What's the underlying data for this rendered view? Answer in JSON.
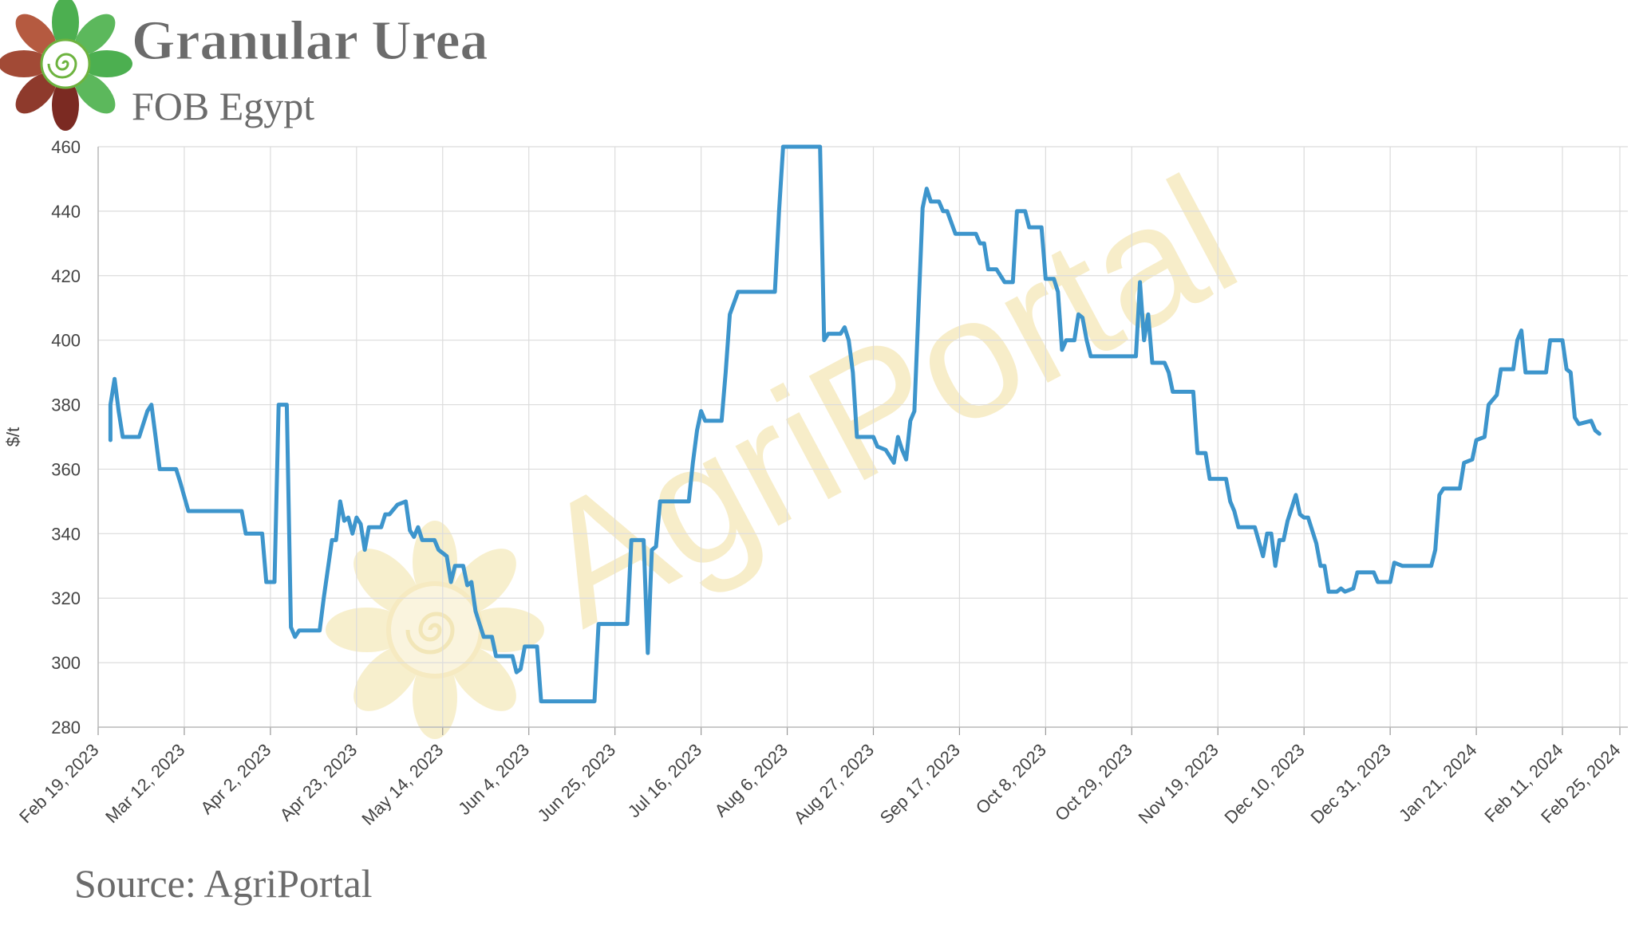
{
  "header": {
    "title": "Granular Urea",
    "subtitle": "FOB Egypt"
  },
  "footer": {
    "source": "Source: AgriPortal"
  },
  "watermark": {
    "text": "AgriPortal"
  },
  "colors": {
    "line": "#3d95cc",
    "grid": "#dcdcdc",
    "title": "#6b6b6b",
    "watermark": "#f2e2a6"
  },
  "chart_data": {
    "type": "line",
    "title": "Granular Urea",
    "subtitle": "FOB Egypt",
    "xlabel": "",
    "ylabel": "$/t",
    "ylim": [
      280,
      460
    ],
    "yticks": [
      280,
      300,
      320,
      340,
      360,
      380,
      400,
      420,
      440,
      460
    ],
    "xlim": [
      "2023-02-19",
      "2024-02-25"
    ],
    "xticks": [
      {
        "date": "2023-02-19",
        "label": "Feb 19, 2023"
      },
      {
        "date": "2023-03-12",
        "label": "Mar 12, 2023"
      },
      {
        "date": "2023-04-02",
        "label": "Apr 2, 2023"
      },
      {
        "date": "2023-04-23",
        "label": "Apr 23, 2023"
      },
      {
        "date": "2023-05-14",
        "label": "May 14, 2023"
      },
      {
        "date": "2023-06-04",
        "label": "Jun 4, 2023"
      },
      {
        "date": "2023-06-25",
        "label": "Jun 25, 2023"
      },
      {
        "date": "2023-07-16",
        "label": "Jul 16, 2023"
      },
      {
        "date": "2023-08-06",
        "label": "Aug 6, 2023"
      },
      {
        "date": "2023-08-27",
        "label": "Aug 27, 2023"
      },
      {
        "date": "2023-09-17",
        "label": "Sep 17, 2023"
      },
      {
        "date": "2023-10-08",
        "label": "Oct 8, 2023"
      },
      {
        "date": "2023-10-29",
        "label": "Oct 29, 2023"
      },
      {
        "date": "2023-11-19",
        "label": "Nov 19, 2023"
      },
      {
        "date": "2023-12-10",
        "label": "Dec 10, 2023"
      },
      {
        "date": "2023-12-31",
        "label": "Dec 31, 2023"
      },
      {
        "date": "2024-01-21",
        "label": "Jan 21, 2024"
      },
      {
        "date": "2024-02-11",
        "label": "Feb 11, 2024"
      },
      {
        "date": "2024-02-25",
        "label": "Feb 25, 2024"
      }
    ],
    "grid": true,
    "legend": "none",
    "series": [
      {
        "values": [
          [
            "2023-02-22",
            369
          ],
          [
            "2023-02-22",
            380
          ],
          [
            "2023-02-23",
            388
          ],
          [
            "2023-02-24",
            378
          ],
          [
            "2023-02-25",
            370
          ],
          [
            "2023-02-28",
            370
          ],
          [
            "2023-03-01",
            370
          ],
          [
            "2023-03-03",
            378
          ],
          [
            "2023-03-04",
            380
          ],
          [
            "2023-03-05",
            370
          ],
          [
            "2023-03-06",
            360
          ],
          [
            "2023-03-10",
            360
          ],
          [
            "2023-03-11",
            356
          ],
          [
            "2023-03-13",
            347
          ],
          [
            "2023-03-26",
            347
          ],
          [
            "2023-03-27",
            340
          ],
          [
            "2023-03-31",
            340
          ],
          [
            "2023-04-01",
            325
          ],
          [
            "2023-04-03",
            325
          ],
          [
            "2023-04-04",
            380
          ],
          [
            "2023-04-06",
            380
          ],
          [
            "2023-04-07",
            311
          ],
          [
            "2023-04-08",
            308
          ],
          [
            "2023-04-09",
            310
          ],
          [
            "2023-04-14",
            310
          ],
          [
            "2023-04-15",
            320
          ],
          [
            "2023-04-17",
            338
          ],
          [
            "2023-04-18",
            338
          ],
          [
            "2023-04-19",
            350
          ],
          [
            "2023-04-20",
            344
          ],
          [
            "2023-04-21",
            345
          ],
          [
            "2023-04-22",
            340
          ],
          [
            "2023-04-23",
            345
          ],
          [
            "2023-04-24",
            343
          ],
          [
            "2023-04-25",
            335
          ],
          [
            "2023-04-26",
            342
          ],
          [
            "2023-04-29",
            342
          ],
          [
            "2023-04-30",
            346
          ],
          [
            "2023-05-01",
            346
          ],
          [
            "2023-05-03",
            349
          ],
          [
            "2023-05-05",
            350
          ],
          [
            "2023-05-06",
            341
          ],
          [
            "2023-05-07",
            339
          ],
          [
            "2023-05-08",
            342
          ],
          [
            "2023-05-09",
            338
          ],
          [
            "2023-05-12",
            338
          ],
          [
            "2023-05-13",
            335
          ],
          [
            "2023-05-15",
            333
          ],
          [
            "2023-05-16",
            325
          ],
          [
            "2023-05-17",
            330
          ],
          [
            "2023-05-19",
            330
          ],
          [
            "2023-05-20",
            324
          ],
          [
            "2023-05-21",
            325
          ],
          [
            "2023-05-22",
            316
          ],
          [
            "2023-05-23",
            312
          ],
          [
            "2023-05-24",
            308
          ],
          [
            "2023-05-26",
            308
          ],
          [
            "2023-05-27",
            302
          ],
          [
            "2023-05-31",
            302
          ],
          [
            "2023-06-01",
            297
          ],
          [
            "2023-06-02",
            298
          ],
          [
            "2023-06-03",
            305
          ],
          [
            "2023-06-06",
            305
          ],
          [
            "2023-06-07",
            288
          ],
          [
            "2023-06-20",
            288
          ],
          [
            "2023-06-21",
            312
          ],
          [
            "2023-06-28",
            312
          ],
          [
            "2023-06-29",
            338
          ],
          [
            "2023-07-02",
            338
          ],
          [
            "2023-07-03",
            303
          ],
          [
            "2023-07-04",
            335
          ],
          [
            "2023-07-05",
            336
          ],
          [
            "2023-07-06",
            350
          ],
          [
            "2023-07-13",
            350
          ],
          [
            "2023-07-14",
            362
          ],
          [
            "2023-07-15",
            372
          ],
          [
            "2023-07-16",
            378
          ],
          [
            "2023-07-17",
            375
          ],
          [
            "2023-07-21",
            375
          ],
          [
            "2023-07-22",
            390
          ],
          [
            "2023-07-23",
            408
          ],
          [
            "2023-07-25",
            415
          ],
          [
            "2023-08-03",
            415
          ],
          [
            "2023-08-04",
            440
          ],
          [
            "2023-08-05",
            460
          ],
          [
            "2023-08-14",
            460
          ],
          [
            "2023-08-15",
            400
          ],
          [
            "2023-08-16",
            402
          ],
          [
            "2023-08-19",
            402
          ],
          [
            "2023-08-20",
            404
          ],
          [
            "2023-08-21",
            400
          ],
          [
            "2023-08-22",
            390
          ],
          [
            "2023-08-23",
            370
          ],
          [
            "2023-08-27",
            370
          ],
          [
            "2023-08-28",
            367
          ],
          [
            "2023-08-30",
            366
          ],
          [
            "2023-09-01",
            362
          ],
          [
            "2023-09-02",
            370
          ],
          [
            "2023-09-03",
            366
          ],
          [
            "2023-09-04",
            363
          ],
          [
            "2023-09-05",
            375
          ],
          [
            "2023-09-06",
            378
          ],
          [
            "2023-09-08",
            441
          ],
          [
            "2023-09-09",
            447
          ],
          [
            "2023-09-10",
            443
          ],
          [
            "2023-09-12",
            443
          ],
          [
            "2023-09-13",
            440
          ],
          [
            "2023-09-14",
            440
          ],
          [
            "2023-09-16",
            433
          ],
          [
            "2023-09-21",
            433
          ],
          [
            "2023-09-22",
            430
          ],
          [
            "2023-09-23",
            430
          ],
          [
            "2023-09-24",
            422
          ],
          [
            "2023-09-26",
            422
          ],
          [
            "2023-09-28",
            418
          ],
          [
            "2023-09-30",
            418
          ],
          [
            "2023-10-01",
            440
          ],
          [
            "2023-10-03",
            440
          ],
          [
            "2023-10-04",
            435
          ],
          [
            "2023-10-07",
            435
          ],
          [
            "2023-10-08",
            419
          ],
          [
            "2023-10-10",
            419
          ],
          [
            "2023-10-11",
            415
          ],
          [
            "2023-10-12",
            397
          ],
          [
            "2023-10-13",
            400
          ],
          [
            "2023-10-15",
            400
          ],
          [
            "2023-10-16",
            408
          ],
          [
            "2023-10-17",
            407
          ],
          [
            "2023-10-18",
            400
          ],
          [
            "2023-10-19",
            395
          ],
          [
            "2023-10-28",
            395
          ],
          [
            "2023-10-30",
            395
          ],
          [
            "2023-10-31",
            418
          ],
          [
            "2023-11-01",
            400
          ],
          [
            "2023-11-02",
            408
          ],
          [
            "2023-11-03",
            393
          ],
          [
            "2023-11-06",
            393
          ],
          [
            "2023-11-07",
            390
          ],
          [
            "2023-11-08",
            384
          ],
          [
            "2023-11-13",
            384
          ],
          [
            "2023-11-14",
            365
          ],
          [
            "2023-11-16",
            365
          ],
          [
            "2023-11-17",
            357
          ],
          [
            "2023-11-21",
            357
          ],
          [
            "2023-11-22",
            350
          ],
          [
            "2023-11-23",
            347
          ],
          [
            "2023-11-24",
            342
          ],
          [
            "2023-11-28",
            342
          ],
          [
            "2023-11-30",
            333
          ],
          [
            "2023-12-01",
            340
          ],
          [
            "2023-12-02",
            340
          ],
          [
            "2023-12-03",
            330
          ],
          [
            "2023-12-04",
            338
          ],
          [
            "2023-12-05",
            338
          ],
          [
            "2023-12-06",
            344
          ],
          [
            "2023-12-08",
            352
          ],
          [
            "2023-12-09",
            346
          ],
          [
            "2023-12-10",
            345
          ],
          [
            "2023-12-11",
            345
          ],
          [
            "2023-12-13",
            337
          ],
          [
            "2023-12-14",
            330
          ],
          [
            "2023-12-15",
            330
          ],
          [
            "2023-12-16",
            322
          ],
          [
            "2023-12-18",
            322
          ],
          [
            "2023-12-19",
            323
          ],
          [
            "2023-12-20",
            322
          ],
          [
            "2023-12-22",
            323
          ],
          [
            "2023-12-23",
            328
          ],
          [
            "2023-12-27",
            328
          ],
          [
            "2023-12-28",
            325
          ],
          [
            "2023-12-31",
            325
          ],
          [
            "2024-01-01",
            331
          ],
          [
            "2024-01-03",
            330
          ],
          [
            "2024-01-10",
            330
          ],
          [
            "2024-01-11",
            335
          ],
          [
            "2024-01-12",
            352
          ],
          [
            "2024-01-13",
            354
          ],
          [
            "2024-01-17",
            354
          ],
          [
            "2024-01-18",
            362
          ],
          [
            "2024-01-20",
            363
          ],
          [
            "2024-01-21",
            369
          ],
          [
            "2024-01-23",
            370
          ],
          [
            "2024-01-24",
            380
          ],
          [
            "2024-01-26",
            383
          ],
          [
            "2024-01-27",
            391
          ],
          [
            "2024-01-30",
            391
          ],
          [
            "2024-01-31",
            400
          ],
          [
            "2024-02-01",
            403
          ],
          [
            "2024-02-02",
            390
          ],
          [
            "2024-02-07",
            390
          ],
          [
            "2024-02-08",
            400
          ],
          [
            "2024-02-11",
            400
          ],
          [
            "2024-02-12",
            391
          ],
          [
            "2024-02-13",
            390
          ],
          [
            "2024-02-14",
            376
          ],
          [
            "2024-02-15",
            374
          ],
          [
            "2024-02-18",
            375
          ],
          [
            "2024-02-19",
            372
          ],
          [
            "2024-02-20",
            371
          ]
        ]
      }
    ]
  }
}
